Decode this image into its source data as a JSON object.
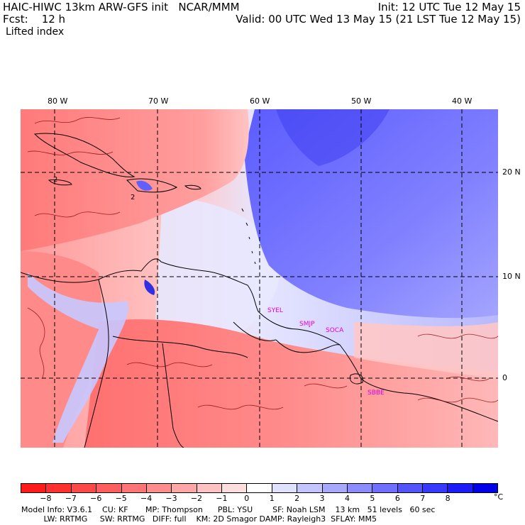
{
  "header": {
    "title": "HAIC-HIWC 13km ARW-GFS init   NCAR/MMM",
    "init": "Init: 12 UTC Tue 12 May 15",
    "fcst": "Fcst:    12 h",
    "valid": "Valid: 00 UTC Wed 13 May 15 (21 LST Tue 12 May 15)",
    "field": "Lifted index"
  },
  "map": {
    "lon_labels": [
      "80 W",
      "70 W",
      "60 W",
      "50 W",
      "40 W"
    ],
    "lat_labels": [
      "20 N",
      "10 N",
      "0"
    ],
    "stations": [
      "SYEL",
      "SMJP",
      "SOCA",
      "SBBE"
    ],
    "contour_label": "2"
  },
  "colorbar": {
    "labels": [
      "−8",
      "−7",
      "−6",
      "−5",
      "−4",
      "−3",
      "−2",
      "−1",
      "0",
      "1",
      "2",
      "3",
      "4",
      "5",
      "6",
      "7",
      "8"
    ],
    "unit": "°C",
    "colors": [
      "#ff1a1a",
      "#ff3030",
      "#ff4848",
      "#ff5e5e",
      "#ff7474",
      "#ff8c8c",
      "#ffa6a6",
      "#ffc2c2",
      "#ffdede",
      "#ffffff",
      "#e0e0ff",
      "#c4c4ff",
      "#a8a8ff",
      "#8c8cff",
      "#7070ff",
      "#5454ff",
      "#3838ff",
      "#1c1cf8",
      "#0000e8"
    ]
  },
  "model_info": {
    "line1": "Model Info: V3.6.1    CU: KF       MP: Thompson      PBL: YSU        SF: Noah LSM    13 km   51 levels   60 sec",
    "line2": "         LW: RRTMG     SW: RRTMG   DIFF: full    KM: 2D Smagor DAMP: Rayleigh3  SFLAY: MM5"
  }
}
